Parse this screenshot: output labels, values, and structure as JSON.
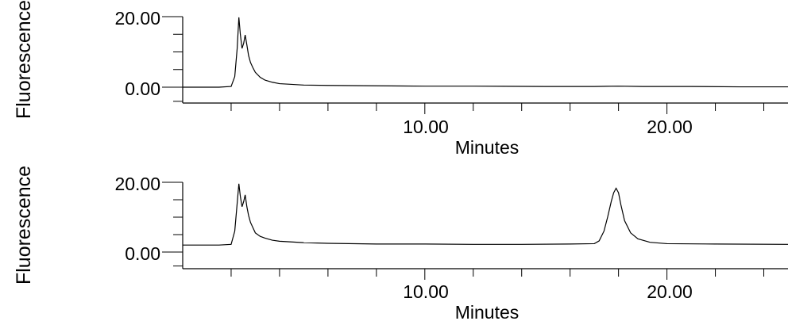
{
  "chart_data": [
    {
      "type": "line",
      "title": "",
      "xlabel": "Minutes",
      "ylabel": "Fluorescence",
      "xlim": [
        0,
        25
      ],
      "ylim": [
        -4,
        20
      ],
      "y_ticks": [
        "20.00",
        "0.00"
      ],
      "x_ticks": [
        "10.00",
        "20.00"
      ],
      "grid": false,
      "series": [
        {
          "values_x": [
            0,
            1.5,
            2.0,
            2.15,
            2.25,
            2.32,
            2.38,
            2.45,
            2.52,
            2.58,
            2.65,
            2.72,
            2.8,
            2.9,
            3.0,
            3.2,
            3.4,
            3.7,
            4.0,
            4.5,
            5,
            6,
            8,
            10,
            12,
            15,
            17,
            18,
            19,
            21,
            23,
            25
          ],
          "values_y": [
            0,
            0,
            0.2,
            3,
            11,
            19.8,
            15,
            11,
            12.5,
            14.8,
            12,
            9,
            7,
            5.5,
            4.2,
            2.8,
            2,
            1.4,
            1.0,
            0.8,
            0.6,
            0.5,
            0.4,
            0.3,
            0.3,
            0.2,
            0.2,
            0.3,
            0.2,
            0.2,
            0.1,
            0.1
          ]
        }
      ]
    },
    {
      "type": "line",
      "title": "",
      "xlabel": "Minutes",
      "ylabel": "Fluorescence",
      "xlim": [
        0,
        25
      ],
      "ylim": [
        -4,
        20
      ],
      "y_ticks": [
        "20.00",
        "0.00"
      ],
      "x_ticks": [
        "10.00",
        "20.00"
      ],
      "grid": false,
      "series": [
        {
          "values_x": [
            0,
            1.5,
            2.0,
            2.15,
            2.25,
            2.32,
            2.38,
            2.45,
            2.52,
            2.58,
            2.65,
            2.72,
            2.8,
            2.9,
            3.0,
            3.2,
            3.4,
            3.7,
            4.0,
            4.5,
            5,
            6,
            8,
            10,
            12,
            14,
            16,
            17.0,
            17.2,
            17.4,
            17.55,
            17.7,
            17.8,
            17.9,
            18.0,
            18.1,
            18.25,
            18.5,
            18.8,
            19.3,
            20,
            22,
            25
          ],
          "values_y": [
            2,
            2,
            2.2,
            6,
            14,
            19.6,
            16,
            13,
            14.5,
            16.4,
            13,
            10.5,
            8.5,
            7,
            5.5,
            4.5,
            4,
            3.4,
            3.1,
            2.9,
            2.7,
            2.5,
            2.3,
            2.3,
            2.2,
            2.2,
            2.3,
            2.4,
            3.2,
            6,
            10,
            14.5,
            17.0,
            18.3,
            17.0,
            13.5,
            9.0,
            5.5,
            3.8,
            2.8,
            2.4,
            2.3,
            2.2
          ]
        }
      ]
    }
  ]
}
